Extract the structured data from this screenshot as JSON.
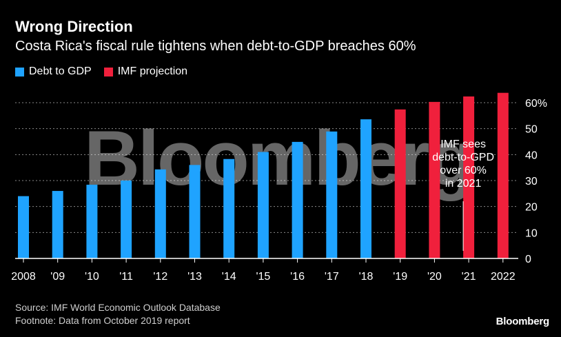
{
  "header": {
    "title": "Wrong Direction",
    "subtitle": "Costa Rica's fiscal rule tightens when debt-to-GDP breaches 60%"
  },
  "legend": [
    {
      "label": "Debt to GDP",
      "color": "#1fa3ff"
    },
    {
      "label": "IMF projection",
      "color": "#f0203c"
    }
  ],
  "watermark": "Bloomberg",
  "footer": {
    "source": "Source: IMF World Economic Outlook Database",
    "footnote": "Footnote: Data from October 2019 report",
    "brand": "Bloomberg"
  },
  "colors": {
    "actual": "#1fa3ff",
    "projection": "#f0203c",
    "grid": "#8a8a8a",
    "axis": "#ffffff"
  },
  "chart_data": {
    "type": "bar",
    "title": "Wrong Direction",
    "subtitle": "Costa Rica's fiscal rule tightens when debt-to-GDP breaches 60%",
    "xlabel": "",
    "ylabel": "",
    "ylim": [
      0,
      60
    ],
    "yticks": [
      0,
      10,
      20,
      30,
      40,
      50,
      60
    ],
    "ytick_labels": [
      "0",
      "10",
      "20",
      "30",
      "40",
      "50",
      "60%"
    ],
    "grid": true,
    "categories": [
      "2008",
      "'09",
      "'10",
      "'11",
      "'12",
      "'13",
      "'14",
      "'15",
      "'16",
      "'17",
      "'18",
      "'19",
      "'20",
      "'21",
      "2022"
    ],
    "series": [
      {
        "name": "Debt to GDP",
        "values": [
          24,
          26,
          28.4,
          30,
          34.3,
          36,
          38.3,
          41,
          44.9,
          48.9,
          53.6,
          null,
          null,
          null,
          null
        ]
      },
      {
        "name": "IMF projection",
        "values": [
          null,
          null,
          null,
          null,
          null,
          null,
          null,
          null,
          null,
          null,
          null,
          57.4,
          60.3,
          62.4,
          63.8
        ]
      }
    ],
    "annotation": {
      "category": "'21",
      "lines": [
        "IMF sees",
        "debt-to-GPD",
        "over 60%",
        "in 2021"
      ]
    }
  }
}
